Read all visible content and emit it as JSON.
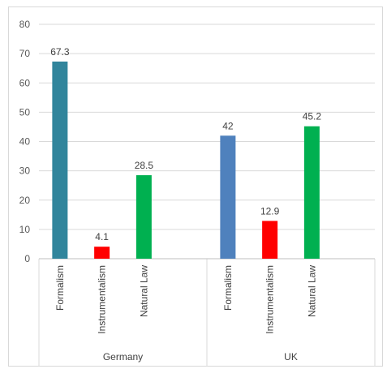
{
  "chart_data": {
    "type": "bar",
    "ylim": [
      0,
      80
    ],
    "yticks": [
      0,
      10,
      20,
      30,
      40,
      50,
      60,
      70,
      80
    ],
    "grid": true,
    "legend": "none",
    "groups": [
      {
        "name": "Germany",
        "bars": [
          {
            "category": "Formalism",
            "value": 67.3,
            "label": "67.3",
            "color": "#31859C"
          },
          {
            "category": "Instrumentalism",
            "value": 4.1,
            "label": "4.1",
            "color": "#FF0000"
          },
          {
            "category": "Natural Law",
            "value": 28.5,
            "label": "28.5",
            "color": "#00B050"
          }
        ]
      },
      {
        "name": "UK",
        "bars": [
          {
            "category": "Formalism",
            "value": 42,
            "label": "42",
            "color": "#4F81BD"
          },
          {
            "category": "Instrumentalism",
            "value": 12.9,
            "label": "12.9",
            "color": "#FF0000"
          },
          {
            "category": "Natural Law",
            "value": 45.2,
            "label": "45.2",
            "color": "#00B050"
          }
        ]
      }
    ]
  }
}
